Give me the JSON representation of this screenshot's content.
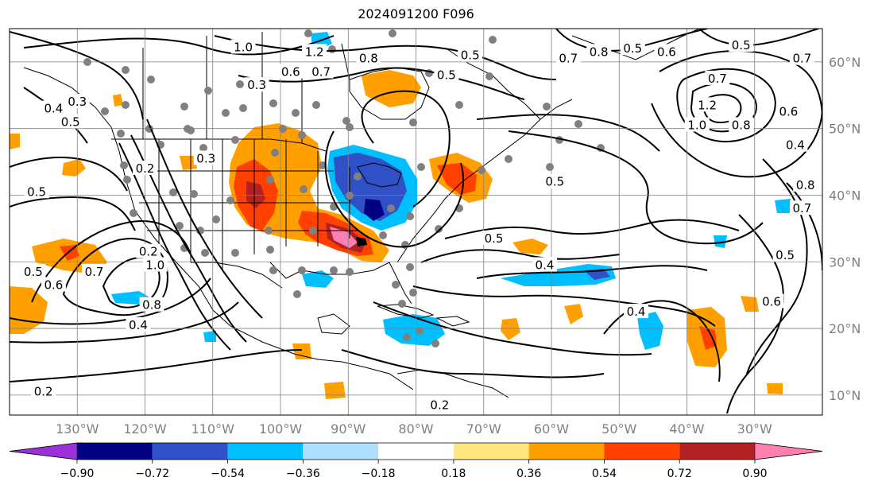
{
  "title": "2024091200 F096",
  "map": {
    "lon_range": [
      -140,
      -20
    ],
    "lat_range": [
      7,
      65
    ],
    "lon_ticks": [
      "130°W",
      "120°W",
      "110°W",
      "100°W",
      "90°W",
      "80°W",
      "70°W",
      "60°W",
      "50°W",
      "40°W",
      "30°W"
    ],
    "lon_tick_values": [
      -130,
      -120,
      -110,
      -100,
      -90,
      -80,
      -70,
      -60,
      -50,
      -40,
      -30
    ],
    "lat_ticks": [
      "10°N",
      "20°N",
      "30°N",
      "40°N",
      "50°N",
      "60°N"
    ],
    "lat_tick_values": [
      10,
      20,
      30,
      40,
      50,
      60
    ],
    "grid": true
  },
  "colorbar": {
    "ticks": [
      "−0.90",
      "−0.72",
      "−0.54",
      "−0.36",
      "−0.18",
      "0.18",
      "0.36",
      "0.54",
      "0.72",
      "0.90"
    ],
    "levels": [
      -0.9,
      -0.72,
      -0.54,
      -0.36,
      -0.18,
      0.18,
      0.36,
      0.54,
      0.72,
      0.9
    ],
    "colors": [
      "#9b30d9",
      "#000080",
      "#3050c8",
      "#00bfff",
      "#b0e0ff",
      "#ffffff",
      "#ffe680",
      "#ffa000",
      "#ff4000",
      "#b22222",
      "#ff80b0"
    ],
    "extend": "both"
  },
  "contour_labels": [
    {
      "text": "1.0",
      "lon": -105.5,
      "lat": 62.2
    },
    {
      "text": "1.2",
      "lon": -95,
      "lat": 61.5
    },
    {
      "text": "0.8",
      "lon": -87,
      "lat": 60.5
    },
    {
      "text": "0.6",
      "lon": -98.5,
      "lat": 58.5
    },
    {
      "text": "0.7",
      "lon": -94,
      "lat": 58.5
    },
    {
      "text": "0.3",
      "lon": -103.5,
      "lat": 56.5
    },
    {
      "text": "0.5",
      "lon": -75.5,
      "lat": 58
    },
    {
      "text": "0.5",
      "lon": -72,
      "lat": 61
    },
    {
      "text": "0.7",
      "lon": -57.5,
      "lat": 60.5
    },
    {
      "text": "0.8",
      "lon": -53,
      "lat": 61.5
    },
    {
      "text": "0.5",
      "lon": -48,
      "lat": 62
    },
    {
      "text": "0.6",
      "lon": -43,
      "lat": 61.5
    },
    {
      "text": "0.5",
      "lon": -32,
      "lat": 62.5
    },
    {
      "text": "0.7",
      "lon": -23,
      "lat": 60.5
    },
    {
      "text": "0.7",
      "lon": -35.5,
      "lat": 57.5
    },
    {
      "text": "1.2",
      "lon": -37,
      "lat": 53.5
    },
    {
      "text": "1.0",
      "lon": -38.5,
      "lat": 50.5
    },
    {
      "text": "0.8",
      "lon": -32,
      "lat": 50.5
    },
    {
      "text": "0.6",
      "lon": -25,
      "lat": 52.5
    },
    {
      "text": "0.4",
      "lon": -24,
      "lat": 47.5
    },
    {
      "text": "0.3",
      "lon": -130,
      "lat": 54
    },
    {
      "text": "0.4",
      "lon": -133.5,
      "lat": 53
    },
    {
      "text": "0.5",
      "lon": -131,
      "lat": 51
    },
    {
      "text": "0.3",
      "lon": -111,
      "lat": 45.5
    },
    {
      "text": "0.2",
      "lon": -120,
      "lat": 44
    },
    {
      "text": "0.5",
      "lon": -136,
      "lat": 40.5
    },
    {
      "text": "0.5",
      "lon": -59.5,
      "lat": 42
    },
    {
      "text": "0.5",
      "lon": -68.5,
      "lat": 33.5
    },
    {
      "text": "0.4",
      "lon": -61,
      "lat": 29.5
    },
    {
      "text": "0.2",
      "lon": -119.5,
      "lat": 31.5
    },
    {
      "text": "1.0",
      "lon": -118.5,
      "lat": 29.5
    },
    {
      "text": "0.7",
      "lon": -127.5,
      "lat": 28.5
    },
    {
      "text": "0.5",
      "lon": -136.5,
      "lat": 28.5
    },
    {
      "text": "0.6",
      "lon": -133.5,
      "lat": 26.5
    },
    {
      "text": "0.8",
      "lon": -119,
      "lat": 23.5
    },
    {
      "text": "0.4",
      "lon": -121,
      "lat": 20.5
    },
    {
      "text": "0.4",
      "lon": -47.5,
      "lat": 22.5
    },
    {
      "text": "0.5",
      "lon": -25.5,
      "lat": 31
    },
    {
      "text": "0.6",
      "lon": -27.5,
      "lat": 24
    },
    {
      "text": "0.8",
      "lon": -22.5,
      "lat": 41.5
    },
    {
      "text": "0.7",
      "lon": -23,
      "lat": 38
    },
    {
      "text": "0.2",
      "lon": -135,
      "lat": 10.5
    },
    {
      "text": "0.2",
      "lon": -76.5,
      "lat": 8.5
    }
  ]
}
